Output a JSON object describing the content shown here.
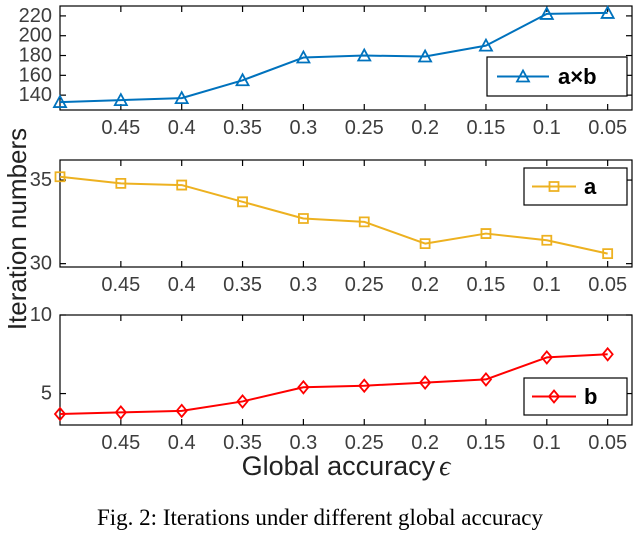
{
  "figure": {
    "ylabel": "Iteration numbers",
    "xlabel_text": "Global accuracy",
    "xlabel_symbol": "ϵ",
    "caption": "Fig. 2: Iterations under different global accuracy"
  },
  "colors": {
    "series_ab": "#0072BD",
    "series_a": "#EDB120",
    "series_b": "#FF0000",
    "axis": "#000000",
    "tick_label": "#3d3d3d",
    "legend_text": "#000000"
  },
  "chart_data": [
    {
      "type": "line",
      "x": [
        0.5,
        0.45,
        0.4,
        0.35,
        0.3,
        0.25,
        0.2,
        0.15,
        0.1,
        0.05
      ],
      "series": [
        {
          "name": "a×b",
          "marker": "triangle",
          "color": "#0072BD",
          "values": [
            133,
            135,
            137,
            155,
            178,
            180,
            179,
            190,
            222,
            223
          ]
        }
      ],
      "xlim": [
        0.5,
        0.03
      ],
      "ylim": [
        125,
        230
      ],
      "xticks": {
        "values": [
          0.45,
          0.4,
          0.35,
          0.3,
          0.25,
          0.2,
          0.15,
          0.1,
          0.05
        ],
        "labels": [
          "0.45",
          "0.4",
          "0.35",
          "0.3",
          "0.25",
          "0.2",
          "0.15",
          "0.1",
          "0.05"
        ]
      },
      "yticks": {
        "values": [
          140,
          160,
          180,
          200,
          220
        ],
        "labels": [
          "140",
          "160",
          "180",
          "200",
          "220"
        ]
      },
      "legend": {
        "label": "a×b",
        "position": "right"
      },
      "grid": false
    },
    {
      "type": "line",
      "x": [
        0.5,
        0.45,
        0.4,
        0.35,
        0.3,
        0.25,
        0.2,
        0.15,
        0.1,
        0.05
      ],
      "series": [
        {
          "name": "a",
          "marker": "square",
          "color": "#EDB120",
          "values": [
            35.2,
            34.8,
            34.7,
            33.7,
            32.7,
            32.5,
            31.2,
            31.8,
            31.4,
            30.6
          ]
        }
      ],
      "xlim": [
        0.5,
        0.03
      ],
      "ylim": [
        29.8,
        36.2
      ],
      "xticks": {
        "values": [
          0.45,
          0.4,
          0.35,
          0.3,
          0.25,
          0.2,
          0.15,
          0.1,
          0.05
        ],
        "labels": [
          "0.45",
          "0.4",
          "0.35",
          "0.3",
          "0.25",
          "0.2",
          "0.15",
          "0.1",
          "0.05"
        ]
      },
      "yticks": {
        "values": [
          30,
          35
        ],
        "labels": [
          "30",
          "35"
        ]
      },
      "legend": {
        "label": "a",
        "position": "top-right"
      },
      "grid": false
    },
    {
      "type": "line",
      "x": [
        0.5,
        0.45,
        0.4,
        0.35,
        0.3,
        0.25,
        0.2,
        0.15,
        0.1,
        0.05
      ],
      "series": [
        {
          "name": "b",
          "marker": "diamond",
          "color": "#FF0000",
          "values": [
            3.7,
            3.8,
            3.9,
            4.5,
            5.4,
            5.5,
            5.7,
            5.9,
            7.3,
            7.5
          ]
        }
      ],
      "xlim": [
        0.5,
        0.03
      ],
      "ylim": [
        3,
        10
      ],
      "xticks": {
        "values": [
          0.45,
          0.4,
          0.35,
          0.3,
          0.25,
          0.2,
          0.15,
          0.1,
          0.05
        ],
        "labels": [
          "0.45",
          "0.4",
          "0.35",
          "0.3",
          "0.25",
          "0.2",
          "0.15",
          "0.1",
          "0.05"
        ]
      },
      "yticks": {
        "values": [
          5,
          10
        ],
        "labels": [
          "5",
          "10"
        ]
      },
      "legend": {
        "label": "b",
        "position": "right"
      },
      "grid": false
    }
  ]
}
